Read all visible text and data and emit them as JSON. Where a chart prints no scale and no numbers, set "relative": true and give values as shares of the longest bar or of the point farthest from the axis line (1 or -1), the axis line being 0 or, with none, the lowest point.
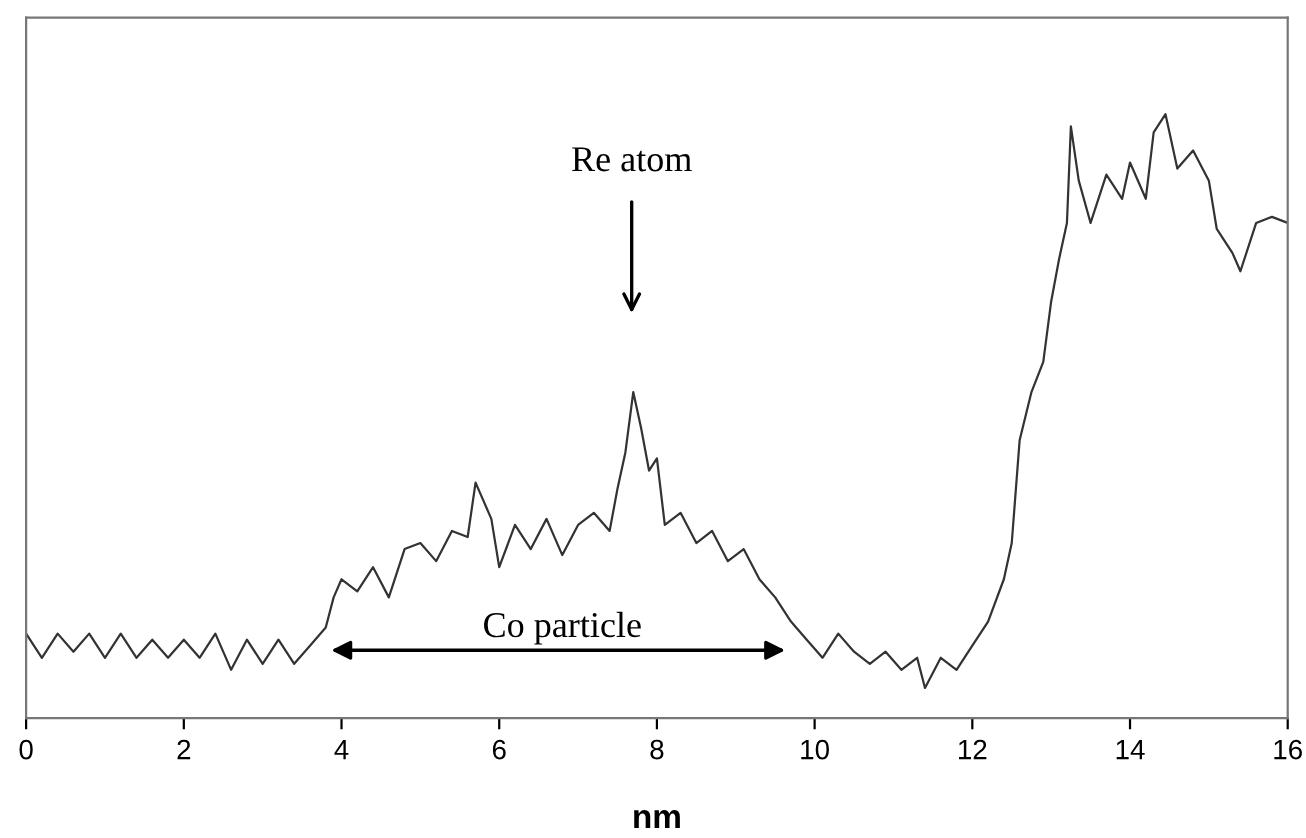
{
  "chart_data": {
    "type": "line",
    "xlabel": "nm",
    "relative": true,
    "xlim": [
      0,
      16
    ],
    "xticks": [
      0,
      2,
      4,
      6,
      8,
      10,
      12,
      14,
      16
    ],
    "grid": false,
    "marker": "none",
    "line_style": "solid",
    "series": [
      {
        "color": "#333333",
        "x": [
          0,
          0.2,
          0.4,
          0.6,
          0.8,
          1.0,
          1.2,
          1.4,
          1.6,
          1.8,
          2.0,
          2.2,
          2.4,
          2.6,
          2.8,
          3.0,
          3.2,
          3.4,
          3.6,
          3.8,
          3.9,
          4.0,
          4.2,
          4.4,
          4.6,
          4.8,
          5.0,
          5.2,
          5.4,
          5.6,
          5.7,
          5.9,
          6.0,
          6.2,
          6.4,
          6.6,
          6.8,
          7.0,
          7.2,
          7.4,
          7.5,
          7.6,
          7.7,
          7.8,
          7.9,
          8.0,
          8.1,
          8.3,
          8.5,
          8.7,
          8.9,
          9.1,
          9.3,
          9.5,
          9.7,
          9.9,
          10.1,
          10.3,
          10.5,
          10.7,
          10.9,
          11.1,
          11.3,
          11.4,
          11.6,
          11.8,
          12.0,
          12.2,
          12.4,
          12.5,
          12.6,
          12.75,
          12.9,
          13.0,
          13.1,
          13.2,
          13.25,
          13.35,
          13.5,
          13.7,
          13.9,
          14.0,
          14.2,
          14.3,
          14.45,
          14.6,
          14.8,
          15.0,
          15.1,
          15.3,
          15.4,
          15.6,
          15.8,
          16.0
        ],
        "values": [
          0.14,
          0.1,
          0.14,
          0.11,
          0.14,
          0.1,
          0.14,
          0.1,
          0.13,
          0.1,
          0.13,
          0.1,
          0.14,
          0.08,
          0.13,
          0.09,
          0.13,
          0.09,
          0.12,
          0.15,
          0.2,
          0.23,
          0.21,
          0.25,
          0.2,
          0.28,
          0.29,
          0.26,
          0.31,
          0.3,
          0.39,
          0.33,
          0.25,
          0.32,
          0.28,
          0.33,
          0.27,
          0.32,
          0.34,
          0.31,
          0.38,
          0.44,
          0.54,
          0.48,
          0.41,
          0.43,
          0.32,
          0.34,
          0.29,
          0.31,
          0.26,
          0.28,
          0.23,
          0.2,
          0.16,
          0.13,
          0.1,
          0.14,
          0.11,
          0.09,
          0.11,
          0.08,
          0.1,
          0.05,
          0.1,
          0.08,
          0.12,
          0.16,
          0.23,
          0.29,
          0.46,
          0.54,
          0.59,
          0.69,
          0.76,
          0.82,
          0.98,
          0.89,
          0.82,
          0.9,
          0.86,
          0.92,
          0.86,
          0.97,
          1.0,
          0.91,
          0.94,
          0.89,
          0.81,
          0.77,
          0.74,
          0.82,
          0.83,
          0.82
        ]
      }
    ],
    "annotations": [
      "Re atom",
      "Co particle"
    ]
  }
}
